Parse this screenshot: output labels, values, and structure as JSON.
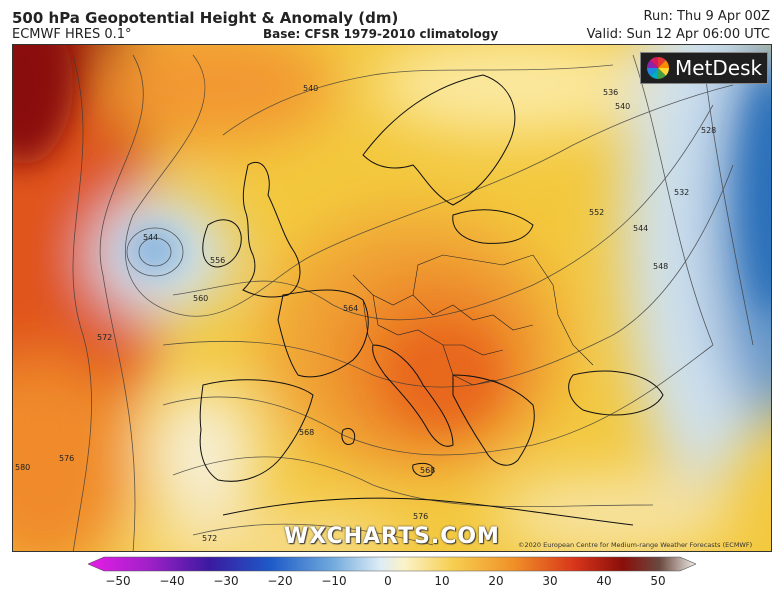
{
  "header": {
    "title": "500 hPa Geopotential Height & Anomaly (dm)",
    "model": "ECMWF HRES 0.1°",
    "base": "Base: CFSR 1979-2010 climatology",
    "run": "Run: Thu 9 Apr 00Z",
    "valid": "Valid: Sun 12 Apr 06:00 UTC"
  },
  "logo": {
    "text": "MetDesk"
  },
  "watermark": {
    "text": "WXCHARTS.COM"
  },
  "copyright": {
    "text": "©2020 European Centre for Medium-range Weather Forecasts (ECMWF)"
  },
  "contour_labels": [
    "540",
    "544",
    "556",
    "560",
    "564",
    "568",
    "572",
    "576",
    "580",
    "572",
    "576",
    "568",
    "532",
    "528",
    "536",
    "540",
    "544",
    "548",
    "552",
    "576"
  ],
  "colorbar": {
    "ticks": [
      "−50",
      "−40",
      "−30",
      "−20",
      "−10",
      "0",
      "10",
      "20",
      "30",
      "40",
      "50"
    ],
    "min": -50,
    "max": 50
  }
}
